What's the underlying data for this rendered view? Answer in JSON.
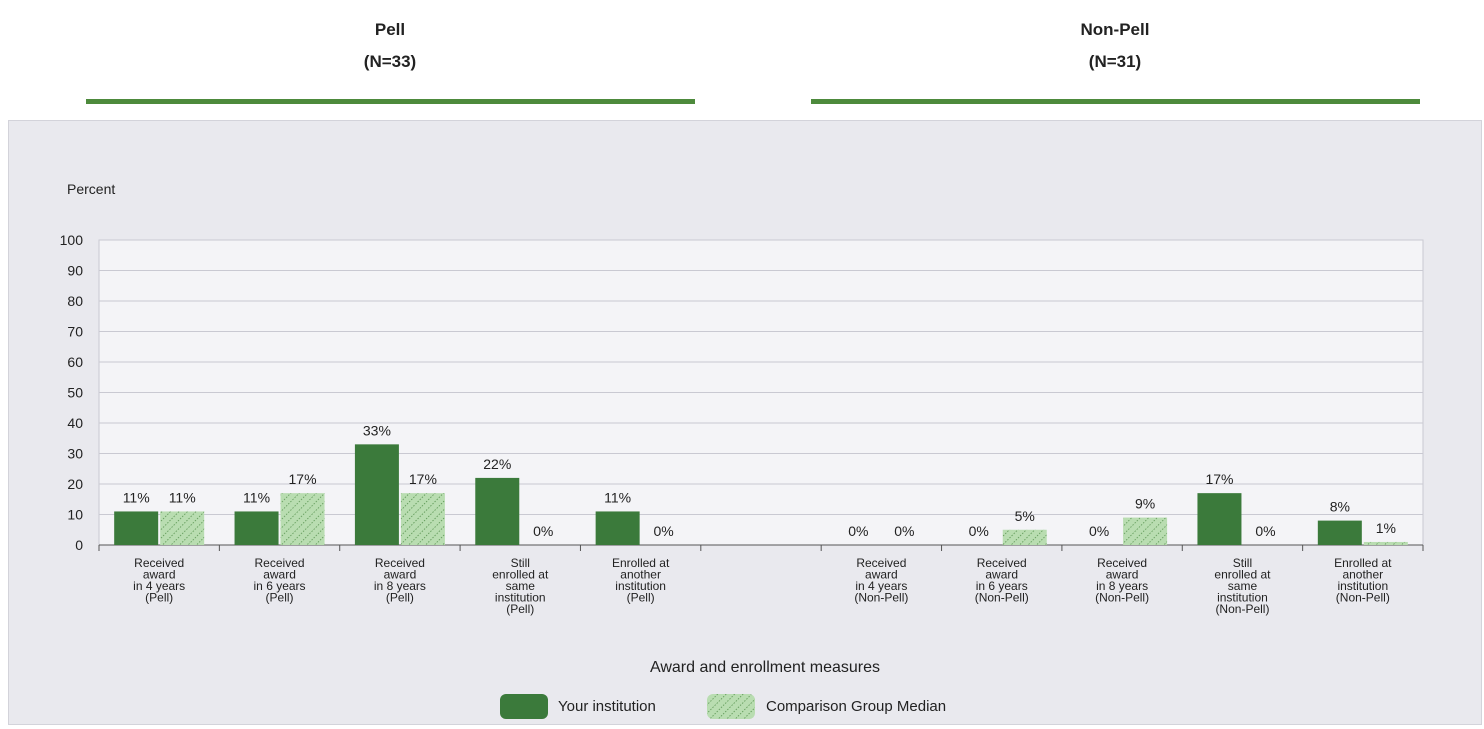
{
  "headers": [
    {
      "title": "Pell",
      "n": "(N=33)"
    },
    {
      "title": "Non-Pell",
      "n": "(N=31)"
    }
  ],
  "chart_data": {
    "type": "bar",
    "title": "",
    "ylabel": "Percent",
    "xlabel": "Award and enrollment measures",
    "ylim": [
      0,
      100
    ],
    "yticks": [
      0,
      10,
      20,
      30,
      40,
      50,
      60,
      70,
      80,
      90,
      100
    ],
    "grid": true,
    "legend_position": "bottom",
    "categories": [
      [
        "Received",
        "award",
        "in 4 years",
        "(Pell)"
      ],
      [
        "Received",
        "award",
        "in 6 years",
        "(Pell)"
      ],
      [
        "Received",
        "award",
        "in 8 years",
        "(Pell)"
      ],
      [
        "Still",
        "enrolled at",
        "same",
        "institution",
        "(Pell)"
      ],
      [
        "Enrolled at",
        "another",
        "institution",
        "(Pell)"
      ],
      [],
      [
        "Received",
        "award",
        "in 4 years",
        "(Non-Pell)"
      ],
      [
        "Received",
        "award",
        "in 6 years",
        "(Non-Pell)"
      ],
      [
        "Received",
        "award",
        "in 8 years",
        "(Non-Pell)"
      ],
      [
        "Still",
        "enrolled at",
        "same",
        "institution",
        "(Non-Pell)"
      ],
      [
        "Enrolled at",
        "another",
        "institution",
        "(Non-Pell)"
      ]
    ],
    "series": [
      {
        "name": "Your institution",
        "color": "#3b7a3b",
        "pattern": "solid",
        "values": [
          11,
          11,
          33,
          22,
          11,
          null,
          0,
          0,
          0,
          17,
          8
        ],
        "labels": [
          "11%",
          "11%",
          "33%",
          "22%",
          "11%",
          null,
          "0%",
          "0%",
          "0%",
          "17%",
          "8%"
        ]
      },
      {
        "name": "Comparison Group Median",
        "color": "#b9ddb1",
        "pattern": "hatched",
        "values": [
          11,
          17,
          17,
          0,
          0,
          null,
          0,
          5,
          9,
          0,
          1
        ],
        "labels": [
          "11%",
          "17%",
          "17%",
          "0%",
          "0%",
          null,
          "0%",
          "5%",
          "9%",
          "0%",
          "1%"
        ]
      }
    ]
  }
}
